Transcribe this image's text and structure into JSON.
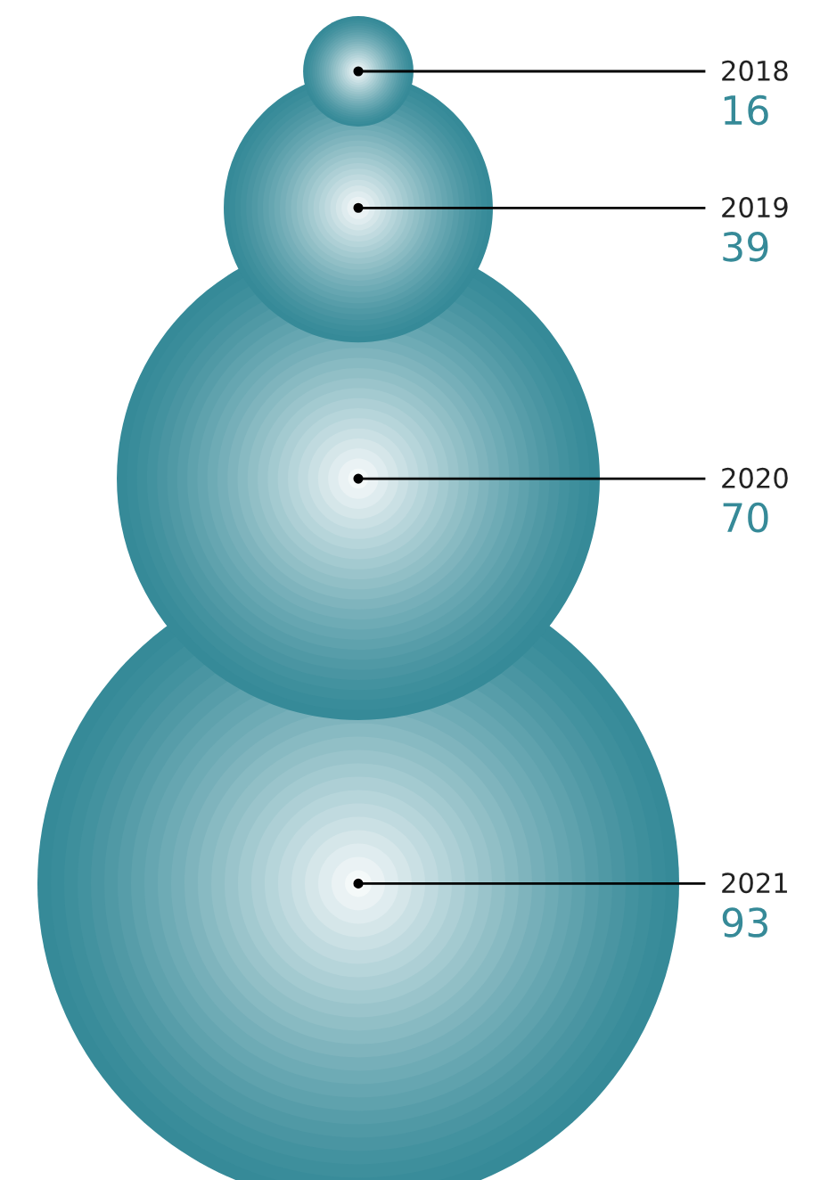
{
  "chart_data": {
    "type": "other",
    "categories": [
      "2018",
      "2019",
      "2020",
      "2021"
    ],
    "values": [
      16,
      39,
      70,
      93
    ],
    "color": "#368a98",
    "data_labels": true
  }
}
